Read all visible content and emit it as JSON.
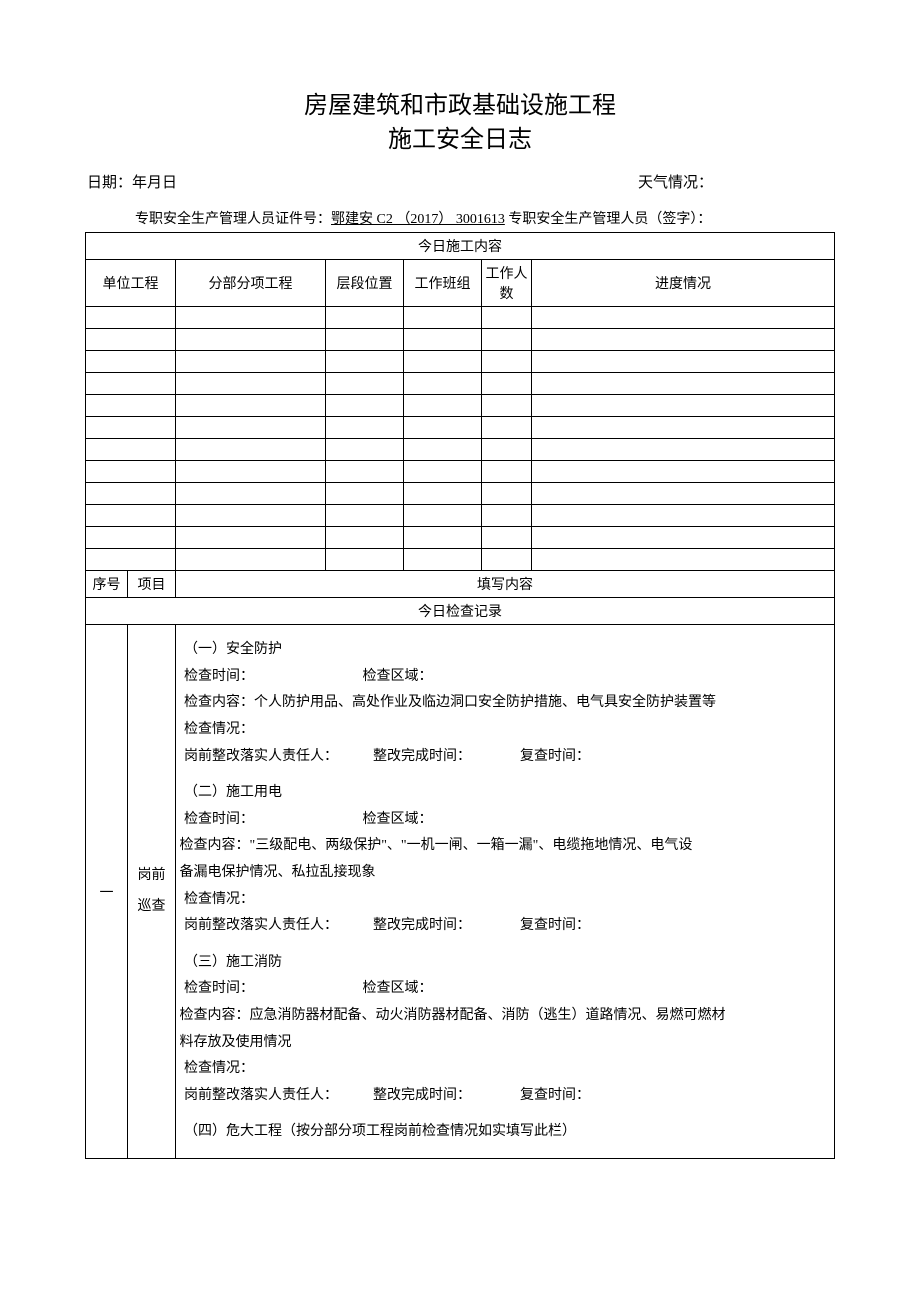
{
  "title": {
    "line1": "房屋建筑和市政基础设施工程",
    "line2": "施工安全日志"
  },
  "header": {
    "date_label": "日期：年月日",
    "weather_label": "天气情况："
  },
  "cert": {
    "prefix": "专职安全生产管理人员证件号：",
    "number": "鄂建安 C2 （2017） 3001613",
    "suffix": " 专职安全生产管理人员（签字）："
  },
  "table1": {
    "section_title": "今日施工内容",
    "columns": {
      "c1": "单位工程",
      "c2": "分部分项工程",
      "c3": "层段位置",
      "c4": "工作班组",
      "c5": "工作人数",
      "c6": "进度情况"
    },
    "empty_row_count": 12
  },
  "table2": {
    "header": {
      "seq": "序号",
      "proj": "项目",
      "content": "填写内容"
    },
    "section_title": "今日检查记录",
    "row1": {
      "seq": "一",
      "proj_line1": "岗前",
      "proj_line2": "巡查",
      "content": {
        "b1_title": "（一）安全防护",
        "b1_l1_a": "检查时间：",
        "b1_l1_b": "检查区域：",
        "b1_l2": "检查内容：个人防护用品、高处作业及临边洞口安全防护措施、电气具安全防护装置等",
        "b1_l3": "检查情况：",
        "b1_l4_a": "岗前整改落实人责任人：",
        "b1_l4_b": "整改完成时间：",
        "b1_l4_c": "复查时间：",
        "b2_title": "（二）施工用电",
        "b2_l1_a": "检查时间：",
        "b2_l1_b": "检查区域：",
        "b2_l2a": " 检查内容：\"三级配电、两级保护\"、\"一机一闸、一箱一漏\"、电缆拖地情况、电气设",
        "b2_l2b": " 备漏电保护情况、私拉乱接现象",
        "b2_l3": "检查情况：",
        "b2_l4_a": "岗前整改落实人责任人：",
        "b2_l4_b": "整改完成时间：",
        "b2_l4_c": "复查时间：",
        "b3_title": "（三）施工消防",
        "b3_l1_a": "检查时间：",
        "b3_l1_b": "检查区域：",
        "b3_l2a": " 检查内容：应急消防器材配备、动火消防器材配备、消防（逃生）道路情况、易燃可燃材",
        "b3_l2b": " 料存放及使用情况",
        "b3_l3": "检查情况：",
        "b3_l4_a": "岗前整改落实人责任人：",
        "b3_l4_b": "整改完成时间：",
        "b3_l4_c": "复查时间：",
        "b4_title": "（四）危大工程（按分部分项工程岗前检查情况如实填写此栏）"
      }
    }
  },
  "colors": {
    "text": "#000000",
    "border": "#000000",
    "background": "#ffffff"
  },
  "fonts": {
    "title_size_pt": 18,
    "body_size_pt": 10.5
  }
}
